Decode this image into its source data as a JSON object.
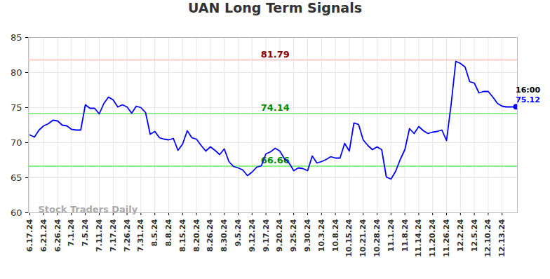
{
  "chart_data": {
    "type": "line",
    "title": "UAN Long Term Signals",
    "categories": [
      "6.17.24",
      null,
      null,
      "6.21.24",
      null,
      null,
      "6.26.24",
      null,
      null,
      "7.1.24",
      null,
      null,
      "7.5.24",
      null,
      null,
      "7.11.24",
      null,
      null,
      "7.17.24",
      null,
      null,
      "7.26.24",
      null,
      null,
      "7.31.24",
      null,
      null,
      "8.5.24",
      null,
      null,
      "8.8.24",
      null,
      null,
      "8.15.24",
      null,
      null,
      "8.20.24",
      null,
      null,
      "8.26.24",
      null,
      null,
      "8.30.24",
      null,
      null,
      "9.5.24",
      null,
      null,
      "9.12.24",
      null,
      null,
      "9.17.24",
      null,
      null,
      "9.20.24",
      null,
      null,
      "9.25.24",
      null,
      null,
      "9.30.24",
      null,
      null,
      "10.3.24",
      null,
      null,
      "10.8.24",
      null,
      null,
      "10.15.24",
      null,
      null,
      "10.21.24",
      null,
      null,
      "10.28.24",
      null,
      null,
      "11.1.24",
      null,
      null,
      "11.8.24",
      null,
      null,
      "11.14.24",
      null,
      null,
      "11.20.24",
      null,
      null,
      "11.26.24",
      null,
      null,
      "12.2.24",
      null,
      null,
      "12.5.24",
      null,
      null,
      "12.10.24",
      null,
      null,
      "12.13.24",
      null,
      null,
      null
    ],
    "values": [
      71.1,
      70.8,
      71.8,
      72.4,
      72.7,
      73.2,
      73.1,
      72.5,
      72.4,
      71.9,
      71.8,
      71.8,
      75.4,
      74.9,
      74.9,
      74.1,
      75.6,
      76.5,
      76.1,
      75.1,
      75.4,
      75.1,
      74.2,
      75.2,
      75.0,
      74.3,
      71.2,
      71.6,
      70.7,
      70.5,
      70.4,
      70.6,
      68.9,
      69.8,
      71.7,
      70.7,
      70.5,
      69.6,
      68.8,
      69.4,
      68.9,
      68.3,
      69.1,
      67.3,
      66.6,
      66.4,
      66.1,
      65.3,
      65.8,
      66.5,
      66.7,
      68.4,
      68.7,
      69.2,
      68.8,
      67.7,
      67.1,
      66.0,
      66.4,
      66.3,
      66.0,
      68.1,
      67.1,
      67.3,
      67.6,
      68.0,
      67.8,
      67.8,
      69.9,
      68.8,
      72.8,
      72.6,
      70.4,
      69.6,
      69.0,
      69.4,
      69.0,
      65.1,
      64.8,
      65.9,
      67.6,
      69.0,
      72.0,
      71.3,
      72.3,
      71.7,
      71.3,
      71.5,
      71.6,
      71.8,
      70.3,
      75.5,
      81.6,
      81.3,
      80.8,
      78.7,
      78.5,
      77.1,
      77.3,
      77.3,
      76.5,
      75.6,
      75.2,
      75.1,
      75.1,
      75.12
    ],
    "color": "#0000ff",
    "ylim": [
      60,
      85
    ],
    "yticks": [
      60,
      65,
      70,
      75,
      80,
      85
    ],
    "grid": true,
    "levels": [
      {
        "value": 81.79,
        "color": "#ffcccc"
      },
      {
        "value": 74.14,
        "color": "#90ee90"
      },
      {
        "value": 66.66,
        "color": "#90ee90"
      }
    ],
    "last_time": "16:00",
    "watermark": "Stock Traders Daily"
  }
}
